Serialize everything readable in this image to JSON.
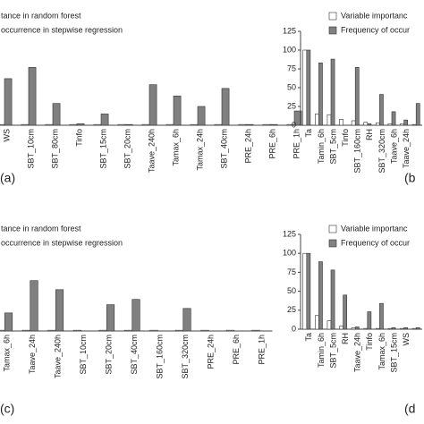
{
  "chart_data": [
    {
      "type": "bar",
      "title": "(a)",
      "categories": [
        "WS",
        "SBT_10cm",
        "SBT_80cm",
        "Tinfo",
        "SBT_15cm",
        "SBT_20cm",
        "Taave_240h",
        "Tamax_6h",
        "Tamax_24h",
        "SBT_40cm",
        "PRE_24h",
        "PRE_6h",
        "PRE_1h"
      ],
      "series": [
        {
          "name": "tance in random forest",
          "color": "#ffffff",
          "values": [
            1,
            1,
            1,
            1,
            1,
            1,
            1,
            1,
            1,
            1,
            1,
            1,
            1
          ]
        },
        {
          "name": "occurrence in stepwise regression",
          "color": "#808080",
          "values": [
            62,
            77,
            29,
            2,
            15,
            1,
            54,
            39,
            25,
            49,
            1,
            1,
            19
          ]
        }
      ],
      "ylim": [
        0,
        125
      ]
    },
    {
      "type": "bar",
      "title": "(b",
      "categories": [
        "Ta",
        "Tamin_6h",
        "SBT_5cm",
        "Tinfo",
        "SBT_160cm",
        "RH",
        "SBT_320cm",
        "Taave_6h",
        "Taave_24h",
        null
      ],
      "series": [
        {
          "name": "Variable importanc",
          "color": "#ffffff",
          "values": [
            100,
            15,
            14,
            8,
            6,
            4,
            3,
            2,
            2,
            1
          ]
        },
        {
          "name": "Frequency of occur",
          "color": "#808080",
          "values": [
            100,
            83,
            88,
            0,
            77,
            2,
            41,
            18,
            7,
            29
          ]
        }
      ],
      "ylim": [
        0,
        125
      ],
      "yticks": [
        0,
        25,
        50,
        75,
        100,
        125
      ]
    },
    {
      "type": "bar",
      "title": "(c)",
      "categories": [
        "Tamax_6h",
        "Taave_24h",
        "Taave_240h",
        "SBT_10cm",
        "SBT_20cm",
        "SBT_40cm",
        "SBT_160cm",
        "SBT_320cm",
        "PRE_24h",
        "PRE_6h",
        "PRE_1h"
      ],
      "series": [
        {
          "name": "tance in random forest",
          "color": "#ffffff",
          "values": [
            1,
            1,
            1,
            1,
            1,
            1,
            1,
            1,
            1,
            1,
            1
          ]
        },
        {
          "name": "occurrence in stepwise regression",
          "color": "#808080",
          "values": [
            24,
            67,
            55,
            0,
            35,
            42,
            0,
            30,
            0,
            0,
            0
          ]
        }
      ],
      "ylim": [
        0,
        125
      ]
    },
    {
      "type": "bar",
      "title": "(d",
      "categories": [
        "Ta",
        "Tamin_6h",
        "SBT_5cm",
        "RH",
        "Taave_24h",
        "Tinfo",
        "Tamax_6h",
        "SBT_15cm",
        "WS",
        null
      ],
      "series": [
        {
          "name": "Variable importanc",
          "color": "#ffffff",
          "values": [
            100,
            18,
            11,
            4,
            2,
            1,
            1,
            1,
            1,
            1
          ]
        },
        {
          "name": "Frequency of occur",
          "color": "#808080",
          "values": [
            100,
            89,
            78,
            45,
            3,
            23,
            34,
            2,
            2,
            2
          ]
        }
      ],
      "ylim": [
        0,
        125
      ],
      "yticks": [
        0,
        25,
        50,
        75,
        100,
        125
      ]
    }
  ]
}
